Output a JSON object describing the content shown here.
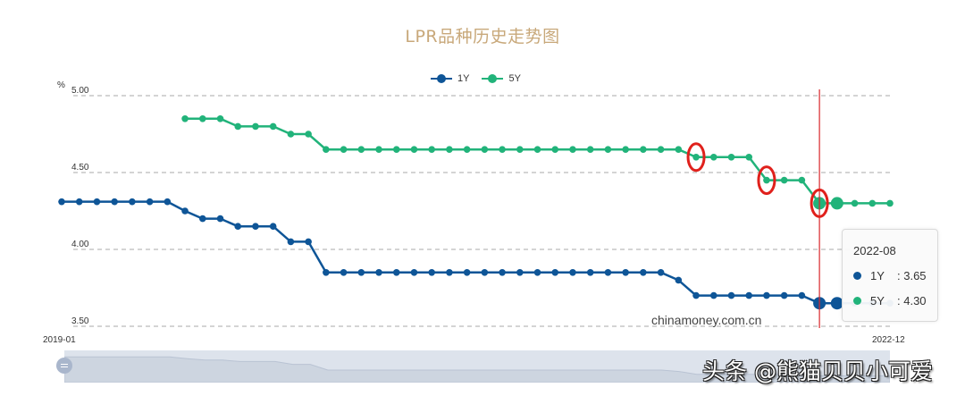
{
  "title": "LPR品种历史走势图",
  "legend": [
    {
      "name": "1Y",
      "color": "#0e5597"
    },
    {
      "name": "5Y",
      "color": "#21b37a"
    }
  ],
  "axis": {
    "unit": "%",
    "y_ticks": [
      "5.00",
      "4.50",
      "4.00",
      "3.50"
    ],
    "x_start": "2019-01",
    "x_end": "2022-12"
  },
  "tooltip": {
    "date": "2022-08",
    "rows": [
      {
        "name": "1Y",
        "value": ": 3.65",
        "color": "#0e5597"
      },
      {
        "name": "5Y",
        "value": ": 4.30",
        "color": "#21b37a"
      }
    ]
  },
  "source_label": "chinamoney.com.cn",
  "watermark": "头条 @熊猫贝贝小可爱",
  "colors": {
    "title": "#c8a87a",
    "series_1y": "#0e5597",
    "series_5y": "#21b37a",
    "crosshair": "#d9262a",
    "highlight_circle": "#e0211c",
    "grid": "#aaaaaa"
  },
  "chart_data": {
    "type": "line",
    "title": "LPR品种历史走势图",
    "xlabel": "",
    "ylabel": "%",
    "ylim": [
      3.5,
      5.0
    ],
    "y_ticks": [
      3.5,
      4.0,
      4.5,
      5.0
    ],
    "grid": "horizontal dashed",
    "legend_position": "top-center",
    "x": [
      "2019-01",
      "2019-02",
      "2019-03",
      "2019-04",
      "2019-05",
      "2019-06",
      "2019-07",
      "2019-08",
      "2019-09",
      "2019-10",
      "2019-11",
      "2019-12",
      "2020-01",
      "2020-02",
      "2020-03",
      "2020-04",
      "2020-05",
      "2020-06",
      "2020-07",
      "2020-08",
      "2020-09",
      "2020-10",
      "2020-11",
      "2020-12",
      "2021-01",
      "2021-02",
      "2021-03",
      "2021-04",
      "2021-05",
      "2021-06",
      "2021-07",
      "2021-08",
      "2021-09",
      "2021-10",
      "2021-11",
      "2021-12",
      "2022-01",
      "2022-02",
      "2022-03",
      "2022-04",
      "2022-05",
      "2022-06",
      "2022-07",
      "2022-08",
      "2022-09",
      "2022-10",
      "2022-11",
      "2022-12"
    ],
    "series": [
      {
        "name": "1Y",
        "values": [
          4.31,
          4.31,
          4.31,
          4.31,
          4.31,
          4.31,
          4.31,
          4.25,
          4.2,
          4.2,
          4.15,
          4.15,
          4.15,
          4.05,
          4.05,
          3.85,
          3.85,
          3.85,
          3.85,
          3.85,
          3.85,
          3.85,
          3.85,
          3.85,
          3.85,
          3.85,
          3.85,
          3.85,
          3.85,
          3.85,
          3.85,
          3.85,
          3.85,
          3.85,
          3.85,
          3.8,
          3.7,
          3.7,
          3.7,
          3.7,
          3.7,
          3.7,
          3.7,
          3.65,
          3.65,
          3.65,
          3.65,
          3.65
        ]
      },
      {
        "name": "5Y",
        "values": [
          null,
          null,
          null,
          null,
          null,
          null,
          null,
          4.85,
          4.85,
          4.85,
          4.8,
          4.8,
          4.8,
          4.75,
          4.75,
          4.65,
          4.65,
          4.65,
          4.65,
          4.65,
          4.65,
          4.65,
          4.65,
          4.65,
          4.65,
          4.65,
          4.65,
          4.65,
          4.65,
          4.65,
          4.65,
          4.65,
          4.65,
          4.65,
          4.65,
          4.65,
          4.6,
          4.6,
          4.6,
          4.6,
          4.45,
          4.45,
          4.45,
          4.3,
          4.3,
          4.3,
          4.3,
          4.3
        ]
      }
    ],
    "annotations": [
      {
        "type": "crosshair",
        "x": "2022-08"
      },
      {
        "type": "highlight-circle",
        "series": "5Y",
        "x": "2022-01"
      },
      {
        "type": "highlight-circle",
        "series": "5Y",
        "x": "2022-05"
      },
      {
        "type": "highlight-circle",
        "series": "5Y",
        "x": "2022-08"
      }
    ]
  }
}
